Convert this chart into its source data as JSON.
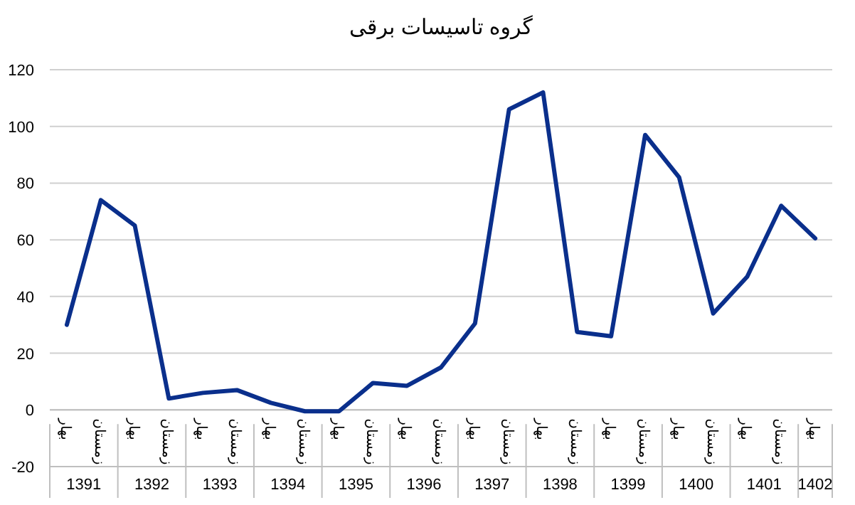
{
  "chart_data": {
    "type": "line",
    "title": "گروه تاسیسات برقی",
    "categories": [
      "بهار",
      "زمستان",
      "بهار",
      "زمستان",
      "بهار",
      "زمستان",
      "بهار",
      "زمستان",
      "بهار",
      "زمستان",
      "بهار",
      "زمستان",
      "بهار",
      "زمستان",
      "بهار",
      "زمستان",
      "بهار",
      "زمستان",
      "بهار",
      "زمستان",
      "بهار",
      "زمستان",
      "بهار"
    ],
    "series": [
      {
        "color": "#0a2f8c",
        "values": [
          30,
          74,
          65,
          4,
          6,
          7,
          2.5,
          -0.5,
          -0.5,
          9.5,
          8.5,
          15,
          30.5,
          106,
          112,
          27.5,
          26,
          97,
          82,
          34,
          47,
          72,
          60.5
        ]
      }
    ],
    "annotations": [
      "1391",
      "1392",
      "1393",
      "1394",
      "1395",
      "1396",
      "1397",
      "1398",
      "1399",
      "1400",
      "1401",
      "1402"
    ],
    "ylim": [
      -20,
      120
    ],
    "yticks": [
      -20,
      0,
      20,
      40,
      60,
      80,
      100,
      120
    ],
    "grid": "y",
    "marker": "none",
    "line_style": "solid"
  }
}
